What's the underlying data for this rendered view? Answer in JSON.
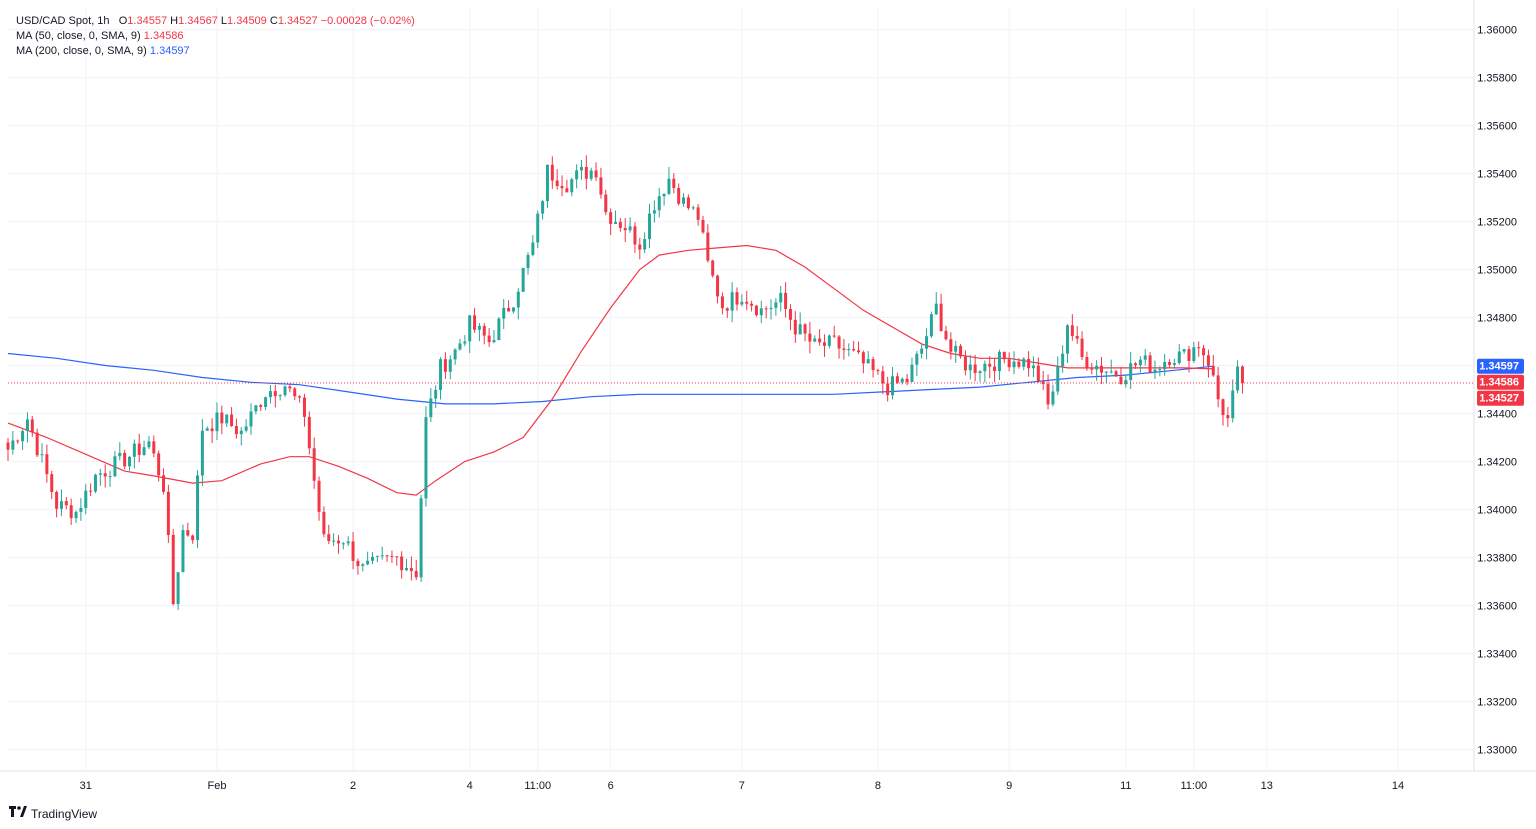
{
  "legend": {
    "symbol": "USD/CAD Spot, 1h",
    "ohlc": {
      "o_label": "O",
      "o": "1.34557",
      "h_label": "H",
      "h": "1.34567",
      "l_label": "L",
      "l": "1.34509",
      "c_label": "C",
      "c": "1.34527",
      "change": "−0.00028 (−0.02%)"
    },
    "ma50": {
      "label": "MA (50, close, 0, SMA, 9)",
      "value": "1.34586"
    },
    "ma200": {
      "label": "MA (200, close, 0, SMA, 9)",
      "value": "1.34597"
    }
  },
  "brand": {
    "name": "TradingView"
  },
  "colors": {
    "up": "#26a69a",
    "down": "#f23645",
    "ma50": "#f23645",
    "ma200": "#2962ff",
    "grid": "#f0f3fa",
    "text": "#131722"
  },
  "chart_data": {
    "type": "candlestick",
    "title": "USD/CAD Spot, 1h",
    "y_axis": {
      "ticks": [
        1.36,
        1.358,
        1.356,
        1.354,
        1.352,
        1.35,
        1.348,
        1.346,
        1.344,
        1.342,
        1.34,
        1.338,
        1.336,
        1.334,
        1.332,
        1.33
      ],
      "tick_labels": [
        "1.36000",
        "1.35800",
        "1.35600",
        "1.35400",
        "1.35200",
        "1.35000",
        "1.34800",
        "",
        "1.34400",
        "1.34200",
        "1.34000",
        "1.33800",
        "1.33600",
        "1.33400",
        "1.33200",
        "1.33000"
      ],
      "range": [
        1.3291,
        1.3609
      ],
      "position": "right"
    },
    "x_axis": {
      "range_index": [
        0,
        280
      ],
      "ticks": [
        {
          "i": 16,
          "label": "31"
        },
        {
          "i": 43,
          "label": "Feb"
        },
        {
          "i": 71,
          "label": "2"
        },
        {
          "i": 95,
          "label": "4"
        },
        {
          "i": 109,
          "label": "11:00"
        },
        {
          "i": 124,
          "label": "6"
        },
        {
          "i": 151,
          "label": "7"
        },
        {
          "i": 179,
          "label": "8"
        },
        {
          "i": 206,
          "label": "9"
        },
        {
          "i": 230,
          "label": "11"
        },
        {
          "i": 244,
          "label": "11:00"
        },
        {
          "i": 259,
          "label": "13"
        },
        {
          "i": 286,
          "label": "14"
        }
      ]
    },
    "price_badges": [
      {
        "label": "1.34597",
        "value": 1.34597,
        "series": "ma200"
      },
      {
        "label": "1.34586",
        "value": 1.34586,
        "series": "ma50"
      },
      {
        "label": "1.34527",
        "value": 1.34527,
        "series": "last"
      }
    ],
    "last_price": 1.34527,
    "grid": true,
    "candle_anchors": [
      [
        0,
        1.3425
      ],
      [
        4,
        1.3438
      ],
      [
        10,
        1.3402
      ],
      [
        14,
        1.3399
      ],
      [
        18,
        1.3414
      ],
      [
        24,
        1.3421
      ],
      [
        29,
        1.3428
      ],
      [
        32,
        1.341
      ],
      [
        34,
        1.3361
      ],
      [
        36,
        1.3391
      ],
      [
        38,
        1.339
      ],
      [
        40,
        1.3434
      ],
      [
        44,
        1.3438
      ],
      [
        48,
        1.3432
      ],
      [
        53,
        1.3449
      ],
      [
        57,
        1.3452
      ],
      [
        61,
        1.344
      ],
      [
        63,
        1.3412
      ],
      [
        65,
        1.3387
      ],
      [
        69,
        1.3388
      ],
      [
        73,
        1.3375
      ],
      [
        77,
        1.3378
      ],
      [
        80,
        1.338
      ],
      [
        84,
        1.3374
      ],
      [
        86,
        1.3437
      ],
      [
        89,
        1.3459
      ],
      [
        92,
        1.3466
      ],
      [
        95,
        1.3477
      ],
      [
        99,
        1.347
      ],
      [
        104,
        1.3488
      ],
      [
        108,
        1.351
      ],
      [
        111,
        1.3541
      ],
      [
        115,
        1.3536
      ],
      [
        118,
        1.354
      ],
      [
        121,
        1.3542
      ],
      [
        123,
        1.3524
      ],
      [
        127,
        1.3518
      ],
      [
        130,
        1.3511
      ],
      [
        133,
        1.3528
      ],
      [
        136,
        1.3538
      ],
      [
        139,
        1.3528
      ],
      [
        142,
        1.3522
      ],
      [
        144,
        1.3502
      ],
      [
        147,
        1.3485
      ],
      [
        151,
        1.349
      ],
      [
        155,
        1.3483
      ],
      [
        159,
        1.3487
      ],
      [
        162,
        1.3476
      ],
      [
        166,
        1.3468
      ],
      [
        170,
        1.3469
      ],
      [
        174,
        1.3464
      ],
      [
        178,
        1.3457
      ],
      [
        181,
        1.3451
      ],
      [
        185,
        1.3454
      ],
      [
        188,
        1.3467
      ],
      [
        191,
        1.3484
      ],
      [
        194,
        1.3466
      ],
      [
        198,
        1.3459
      ],
      [
        202,
        1.3461
      ],
      [
        206,
        1.3463
      ],
      [
        210,
        1.3461
      ],
      [
        212,
        1.3455
      ],
      [
        214,
        1.3443
      ],
      [
        216,
        1.3457
      ],
      [
        218,
        1.3478
      ],
      [
        221,
        1.3463
      ],
      [
        225,
        1.3459
      ],
      [
        229,
        1.3456
      ],
      [
        233,
        1.3462
      ],
      [
        236,
        1.3459
      ],
      [
        239,
        1.3464
      ],
      [
        242,
        1.3464
      ],
      [
        245,
        1.3469
      ],
      [
        247,
        1.3462
      ],
      [
        249,
        1.3446
      ],
      [
        251,
        1.3437
      ],
      [
        253,
        1.3456
      ],
      [
        254,
        1.3453
      ]
    ],
    "ma50_points": [
      [
        0,
        1.3436
      ],
      [
        8,
        1.343
      ],
      [
        16,
        1.3423
      ],
      [
        24,
        1.3416
      ],
      [
        30,
        1.3414
      ],
      [
        38,
        1.3411
      ],
      [
        44,
        1.3412
      ],
      [
        52,
        1.3419
      ],
      [
        58,
        1.3422
      ],
      [
        62,
        1.3422
      ],
      [
        68,
        1.3418
      ],
      [
        74,
        1.3413
      ],
      [
        80,
        1.3407
      ],
      [
        84,
        1.3406
      ],
      [
        88,
        1.3412
      ],
      [
        94,
        1.342
      ],
      [
        100,
        1.3424
      ],
      [
        106,
        1.343
      ],
      [
        112,
        1.3446
      ],
      [
        118,
        1.3466
      ],
      [
        124,
        1.3484
      ],
      [
        130,
        1.35
      ],
      [
        134,
        1.3506
      ],
      [
        140,
        1.3508
      ],
      [
        146,
        1.3509
      ],
      [
        152,
        1.351
      ],
      [
        158,
        1.3508
      ],
      [
        164,
        1.3501
      ],
      [
        170,
        1.3492
      ],
      [
        176,
        1.3483
      ],
      [
        182,
        1.3476
      ],
      [
        188,
        1.3469
      ],
      [
        194,
        1.3465
      ],
      [
        200,
        1.3463
      ],
      [
        206,
        1.3463
      ],
      [
        212,
        1.3461
      ],
      [
        218,
        1.3459
      ],
      [
        224,
        1.3459
      ],
      [
        230,
        1.3459
      ],
      [
        236,
        1.3459
      ],
      [
        242,
        1.3459
      ],
      [
        248,
        1.34586
      ]
    ],
    "ma200_points": [
      [
        0,
        1.3465
      ],
      [
        10,
        1.3463
      ],
      [
        20,
        1.346
      ],
      [
        30,
        1.3458
      ],
      [
        40,
        1.3455
      ],
      [
        50,
        1.3453
      ],
      [
        60,
        1.3452
      ],
      [
        70,
        1.3449
      ],
      [
        80,
        1.3446
      ],
      [
        90,
        1.3444
      ],
      [
        100,
        1.3444
      ],
      [
        110,
        1.3445
      ],
      [
        120,
        1.3447
      ],
      [
        130,
        1.3448
      ],
      [
        140,
        1.3448
      ],
      [
        150,
        1.3448
      ],
      [
        160,
        1.3448
      ],
      [
        170,
        1.3448
      ],
      [
        180,
        1.3449
      ],
      [
        190,
        1.345
      ],
      [
        200,
        1.3451
      ],
      [
        210,
        1.3453
      ],
      [
        220,
        1.3455
      ],
      [
        230,
        1.3456
      ],
      [
        240,
        1.3458
      ],
      [
        248,
        1.34597
      ]
    ]
  }
}
